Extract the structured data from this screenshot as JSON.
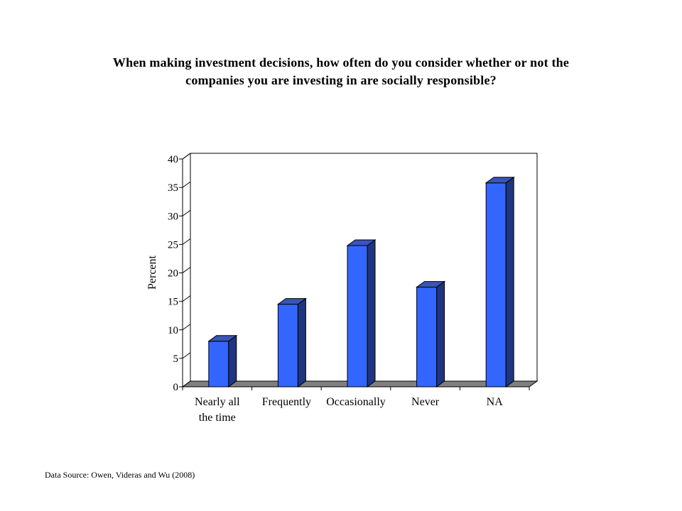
{
  "chart_data": {
    "type": "bar",
    "title_lines": [
      "When making investment decisions, how often do you consider whether or not the",
      "companies you are investing in are socially responsible?"
    ],
    "ylabel": "Percent",
    "xlabel": "",
    "categories": [
      [
        "Nearly all",
        "the time"
      ],
      [
        "Frequently"
      ],
      [
        "Occasionally"
      ],
      [
        "Never"
      ],
      [
        "NA"
      ]
    ],
    "values": [
      8,
      14.5,
      24.8,
      17.5,
      35.8
    ],
    "ylim": [
      0,
      40
    ],
    "yticks": [
      0,
      5,
      10,
      15,
      20,
      25,
      30,
      35,
      40
    ],
    "grid": false,
    "legend": "none",
    "three_d": true,
    "colors": {
      "bar_front": "#3366ff",
      "bar_side": "#1f3580",
      "bar_top": "#3a55b8",
      "floor": "#808080"
    }
  },
  "source_note": "Data Source: Owen, Videras and Wu (2008)"
}
